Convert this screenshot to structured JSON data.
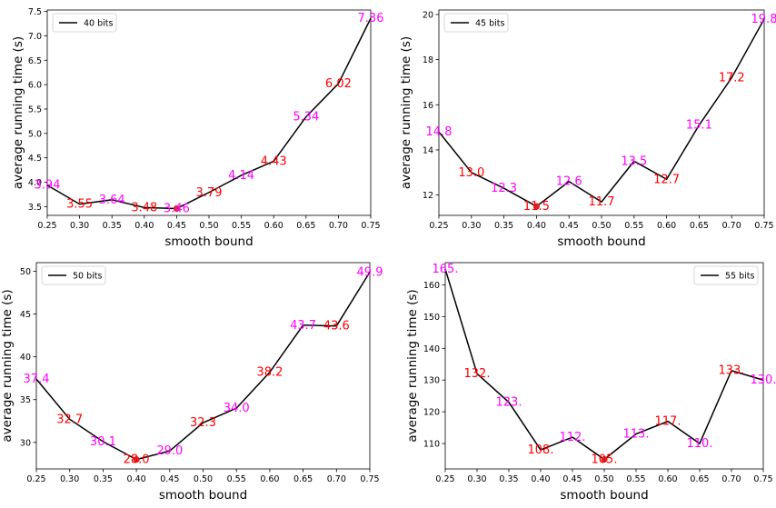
{
  "chart_data": [
    {
      "type": "line",
      "x": [
        0.25,
        0.3,
        0.35,
        0.4,
        0.45,
        0.5,
        0.55,
        0.6,
        0.65,
        0.7,
        0.75
      ],
      "series": [
        {
          "name": "40 bits",
          "values": [
            3.94,
            3.55,
            3.64,
            3.48,
            3.46,
            3.79,
            4.14,
            4.43,
            5.34,
            6.02,
            7.36
          ]
        }
      ],
      "data_labels": [
        "3.94",
        "3.55",
        "3.64",
        "3.48",
        "3.46",
        "3.79",
        "4.14",
        "4.43",
        "5.34",
        "6.02",
        "7.36"
      ],
      "label_colors": [
        "#ff00ff",
        "#ff0000",
        "#ff00ff",
        "#ff0000",
        "#ff00ff",
        "#ff0000",
        "#ff00ff",
        "#ff0000",
        "#ff00ff",
        "#ff0000",
        "#ff00ff"
      ],
      "min_point": {
        "x": 0.45,
        "y": 3.46
      },
      "xlabel": "smooth bound",
      "ylabel": "average running time (s)",
      "xlim": [
        0.25,
        0.75
      ],
      "ylim": [
        3.32,
        7.53
      ],
      "xticks": [
        "0.25",
        "0.30",
        "0.35",
        "0.40",
        "0.45",
        "0.50",
        "0.55",
        "0.60",
        "0.65",
        "0.70",
        "0.75"
      ],
      "yticks": [
        "3.5",
        "4.0",
        "4.5",
        "5.0",
        "5.5",
        "6.0",
        "6.5",
        "7.0",
        "7.5"
      ],
      "legend_position": "upper-left"
    },
    {
      "type": "line",
      "x": [
        0.25,
        0.3,
        0.35,
        0.4,
        0.45,
        0.5,
        0.55,
        0.6,
        0.65,
        0.7,
        0.75
      ],
      "series": [
        {
          "name": "45 bits",
          "values": [
            14.8,
            13.0,
            12.3,
            11.5,
            12.6,
            11.7,
            13.5,
            12.7,
            15.1,
            17.2,
            19.8
          ]
        }
      ],
      "data_labels": [
        "14.8",
        "13.0",
        "12.3",
        "11.5",
        "12.6",
        "11.7",
        "13.5",
        "12.7",
        "15.1",
        "17.2",
        "19.8"
      ],
      "label_colors": [
        "#ff00ff",
        "#ff0000",
        "#ff00ff",
        "#ff0000",
        "#ff00ff",
        "#ff0000",
        "#ff00ff",
        "#ff0000",
        "#ff00ff",
        "#ff0000",
        "#ff00ff"
      ],
      "min_point": {
        "x": 0.4,
        "y": 11.5
      },
      "xlabel": "smooth bound",
      "ylabel": "average running time (s)",
      "xlim": [
        0.25,
        0.75
      ],
      "ylim": [
        11.1,
        20.2
      ],
      "xticks": [
        "0.25",
        "0.30",
        "0.35",
        "0.40",
        "0.45",
        "0.50",
        "0.55",
        "0.60",
        "0.65",
        "0.70",
        "0.75"
      ],
      "yticks": [
        "12",
        "14",
        "16",
        "18",
        "20"
      ],
      "legend_position": "upper-left"
    },
    {
      "type": "line",
      "x": [
        0.25,
        0.3,
        0.35,
        0.4,
        0.45,
        0.5,
        0.55,
        0.6,
        0.65,
        0.7,
        0.75
      ],
      "series": [
        {
          "name": "50 bits",
          "values": [
            37.4,
            32.7,
            30.1,
            28.0,
            29.0,
            32.3,
            34.0,
            38.2,
            43.7,
            43.6,
            49.9
          ]
        }
      ],
      "data_labels": [
        "37.4",
        "32.7",
        "30.1",
        "28.0",
        "29.0",
        "32.3",
        "34.0",
        "38.2",
        "43.7",
        "43.6",
        "49.9"
      ],
      "label_colors": [
        "#ff00ff",
        "#ff0000",
        "#ff00ff",
        "#ff0000",
        "#ff00ff",
        "#ff0000",
        "#ff00ff",
        "#ff0000",
        "#ff00ff",
        "#ff0000",
        "#ff00ff"
      ],
      "min_point": {
        "x": 0.4,
        "y": 28.0
      },
      "xlabel": "smooth bound",
      "ylabel": "average running time (s)",
      "xlim": [
        0.25,
        0.75
      ],
      "ylim": [
        26.9,
        51.0
      ],
      "xticks": [
        "0.25",
        "0.30",
        "0.35",
        "0.40",
        "0.45",
        "0.50",
        "0.55",
        "0.60",
        "0.65",
        "0.70",
        "0.75"
      ],
      "yticks": [
        "30",
        "35",
        "40",
        "45",
        "50"
      ],
      "legend_position": "upper-left"
    },
    {
      "type": "line",
      "x": [
        0.25,
        0.3,
        0.35,
        0.4,
        0.45,
        0.5,
        0.55,
        0.6,
        0.65,
        0.7,
        0.75
      ],
      "series": [
        {
          "name": "55 bits",
          "values": [
            165,
            132,
            123,
            108,
            112,
            105,
            113,
            117,
            110,
            133,
            130
          ]
        }
      ],
      "data_labels": [
        "165.",
        "132.",
        "123.",
        "108.",
        "112.",
        "105.",
        "113.",
        "117.",
        "110.",
        "133.",
        "130."
      ],
      "label_colors": [
        "#ff00ff",
        "#ff0000",
        "#ff00ff",
        "#ff0000",
        "#ff00ff",
        "#ff0000",
        "#ff00ff",
        "#ff0000",
        "#ff00ff",
        "#ff0000",
        "#ff00ff"
      ],
      "min_point": {
        "x": 0.5,
        "y": 105
      },
      "xlabel": "smooth bound",
      "ylabel": "average running time (s)",
      "xlim": [
        0.25,
        0.75
      ],
      "ylim": [
        102,
        167
      ],
      "xticks": [
        "0.25",
        "0.30",
        "0.35",
        "0.40",
        "0.45",
        "0.50",
        "0.55",
        "0.60",
        "0.65",
        "0.70",
        "0.75"
      ],
      "yticks": [
        "110",
        "120",
        "130",
        "140",
        "150",
        "160"
      ],
      "legend_position": "upper-right"
    }
  ]
}
